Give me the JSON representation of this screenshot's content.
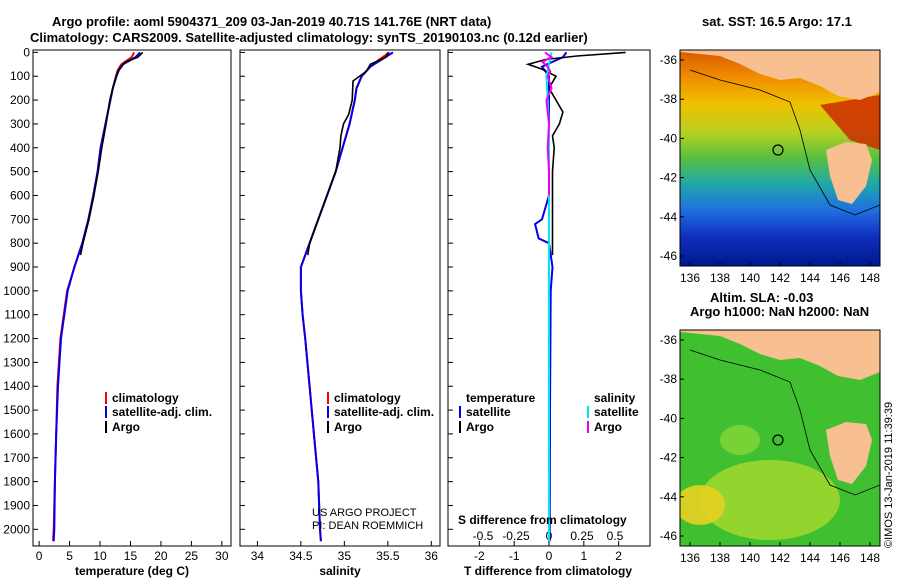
{
  "header": {
    "line1": "Argo profile: aoml 5904371_209 03-Jan-2019 40.71S 141.76E (NRT data)",
    "line2": "Climatology: CARS2009. Satellite-adjusted climatology: synTS_20190103.nc (0.12d earlier)"
  },
  "chart_data": [
    {
      "type": "line",
      "xlabel": "temperature (deg C)",
      "ylabel": "",
      "xlim": [
        -1,
        31.5
      ],
      "ylim": [
        2070,
        -10
      ],
      "xticks": [
        0,
        5,
        10,
        15,
        20,
        25,
        30
      ],
      "yticks": [
        0,
        100,
        200,
        300,
        400,
        500,
        600,
        700,
        800,
        900,
        1000,
        1100,
        1200,
        1300,
        1400,
        1500,
        1600,
        1700,
        1800,
        1900,
        2000
      ],
      "legend": [
        "climatology",
        "satellite-adj. clim.",
        "Argo"
      ],
      "series": [
        {
          "name": "climatology",
          "color": "#ff0000",
          "depth": [
            0,
            20,
            50,
            75,
            100,
            150,
            200,
            300,
            400,
            500,
            600,
            700,
            800,
            900,
            1000,
            1200,
            1400,
            1600,
            1800,
            2000,
            2050
          ],
          "values": [
            15.6,
            15.2,
            13.5,
            12.9,
            12.6,
            12.1,
            11.7,
            10.9,
            10.1,
            9.6,
            8.9,
            8.1,
            7.1,
            5.8,
            4.6,
            3.5,
            3.0,
            2.8,
            2.6,
            2.4,
            2.3
          ]
        },
        {
          "name": "satellite-adj. clim.",
          "color": "#0000ee",
          "depth": [
            0,
            20,
            50,
            75,
            100,
            150,
            200,
            300,
            400,
            500,
            600,
            700,
            800,
            900,
            1000,
            1200,
            1400,
            1600,
            1800,
            2000,
            2050
          ],
          "values": [
            16.6,
            15.8,
            13.8,
            13.1,
            12.7,
            12.1,
            11.7,
            10.9,
            10.1,
            9.6,
            8.9,
            8.1,
            7.1,
            5.8,
            4.7,
            3.6,
            3.1,
            2.8,
            2.6,
            2.5,
            2.4
          ]
        },
        {
          "name": "Argo",
          "color": "#000000",
          "depth": [
            0,
            20,
            40,
            60,
            80,
            100,
            150,
            200,
            300,
            400,
            500,
            600,
            700,
            800,
            850
          ],
          "values": [
            17.0,
            16.2,
            14.2,
            13.4,
            12.9,
            12.7,
            12.1,
            11.6,
            11.0,
            10.3,
            9.7,
            9.0,
            8.2,
            7.2,
            6.8
          ]
        }
      ]
    },
    {
      "type": "line",
      "xlabel": "salinity",
      "ylabel": "",
      "xlim": [
        33.8,
        36.1
      ],
      "ylim": [
        2070,
        -10
      ],
      "xticks": [
        34,
        34.5,
        35,
        35.5,
        36
      ],
      "legend": [
        "climatology",
        "satellite-adj. clim.",
        "Argo"
      ],
      "series": [
        {
          "name": "climatology",
          "color": "#ff0000",
          "depth": [
            0,
            30,
            60,
            100,
            150,
            200,
            300,
            400,
            500,
            600,
            700,
            800,
            900,
            1000,
            1100,
            1200,
            1400,
            1600,
            1800,
            2000,
            2050
          ],
          "values": [
            35.52,
            35.4,
            35.3,
            35.2,
            35.14,
            35.12,
            35.06,
            34.98,
            34.9,
            34.8,
            34.7,
            34.6,
            34.5,
            34.5,
            34.52,
            34.55,
            34.6,
            34.65,
            34.7,
            34.72,
            34.73
          ]
        },
        {
          "name": "satellite-adj. clim.",
          "color": "#0000ee",
          "depth": [
            0,
            30,
            60,
            100,
            150,
            200,
            300,
            400,
            500,
            600,
            700,
            800,
            900,
            1000,
            1100,
            1200,
            1400,
            1600,
            1800,
            2000,
            2050
          ],
          "values": [
            35.56,
            35.43,
            35.3,
            35.2,
            35.14,
            35.12,
            35.06,
            34.98,
            34.9,
            34.8,
            34.7,
            34.6,
            34.5,
            34.5,
            34.52,
            34.55,
            34.6,
            34.65,
            34.7,
            34.72,
            34.73
          ]
        },
        {
          "name": "Argo",
          "color": "#000000",
          "depth": [
            0,
            20,
            50,
            80,
            120,
            200,
            260,
            300,
            350,
            400,
            500,
            600,
            700,
            800,
            850
          ],
          "values": [
            35.5,
            35.48,
            35.3,
            35.25,
            35.1,
            35.09,
            35.05,
            34.99,
            34.96,
            34.95,
            34.9,
            34.8,
            34.7,
            34.6,
            34.58
          ]
        }
      ]
    },
    {
      "type": "line",
      "xlabel": "T difference from climatology",
      "xlabel2": "S difference from climatology",
      "ylabel": "",
      "xlim": [
        -2.9,
        2.9
      ],
      "ylim": [
        2070,
        -10
      ],
      "xticks": [
        -2,
        -1,
        0,
        1,
        2
      ],
      "xticks2": [
        "-0.5",
        "-0.25",
        "0",
        "0.25",
        "0.5"
      ],
      "legend_left_title": "temperature",
      "legend_right_title": "salinity",
      "legend_left": [
        "satellite",
        "Argo"
      ],
      "legend_right": [
        "satellite",
        "Argo"
      ],
      "series": [
        {
          "name": "T satellite",
          "color": "#0000ee",
          "depth": [
            0,
            20,
            40,
            60,
            80,
            100,
            150,
            200,
            300,
            400,
            500,
            600,
            700,
            720,
            780,
            800,
            900,
            1000,
            1500,
            2000,
            2050
          ],
          "values": [
            0.5,
            0.4,
            0.1,
            -0.2,
            -0.1,
            0.0,
            0.0,
            0.0,
            0.0,
            0.0,
            0.0,
            0.0,
            -0.2,
            -0.4,
            -0.3,
            0.0,
            0.1,
            0.05,
            0.03,
            0.02,
            0.02
          ]
        },
        {
          "name": "T Argo",
          "color": "#000000",
          "depth": [
            0,
            15,
            30,
            50,
            70,
            100,
            150,
            200,
            250,
            300,
            350,
            400,
            500,
            600,
            700,
            800,
            850
          ],
          "values": [
            2.2,
            0.8,
            -0.1,
            -0.6,
            -0.2,
            0.2,
            0.0,
            0.2,
            0.4,
            0.3,
            0.1,
            0.15,
            0.1,
            0.1,
            0.1,
            0.1,
            0.1
          ]
        },
        {
          "name": "S satellite",
          "color": "#00e5ee",
          "depth": [
            0,
            50,
            100,
            200,
            300,
            400,
            500,
            700,
            900,
            1200,
            1600,
            2000,
            2050
          ],
          "values": [
            0.02,
            0.0,
            -0.02,
            -0.01,
            0.0,
            0.0,
            0.0,
            0.0,
            0.0,
            0.0,
            0.0,
            0.0,
            0.0
          ]
        },
        {
          "name": "S Argo",
          "color": "#ee00ee",
          "depth": [
            0,
            20,
            40,
            60,
            80,
            100,
            150,
            200,
            300,
            400,
            500,
            600
          ],
          "values": [
            -0.03,
            0.02,
            -0.05,
            -0.01,
            0.01,
            -0.01,
            0.02,
            -0.02,
            0.0,
            -0.01,
            0.0,
            0.0
          ]
        }
      ]
    }
  ],
  "maps": {
    "sst": {
      "title": "sat. SST: 16.5 Argo: 17.1",
      "lon_ticks": [
        "136",
        "138",
        "140",
        "142",
        "144",
        "146",
        "148"
      ],
      "lat_ticks": [
        "-36",
        "-38",
        "-40",
        "-42",
        "-44",
        "-46"
      ],
      "colors": {
        "land": "#f8c090",
        "coast_line": "#000000",
        "warm": "#cc2a00",
        "cool": "#0018a0"
      }
    },
    "sla": {
      "title_line1": "Altim. SLA: -0.03",
      "title_line2": "Argo h1000: NaN h2000: NaN",
      "lon_ticks": [
        "136",
        "138",
        "140",
        "142",
        "144",
        "146",
        "148"
      ],
      "lat_ticks": [
        "-36",
        "-38",
        "-40",
        "-42",
        "-44",
        "-46"
      ]
    }
  },
  "credits": {
    "project": "US ARGO PROJECT",
    "pi": "PI: DEAN ROEMMICH",
    "imos": "©IMOS 13-Jan-2019 11:39:39"
  }
}
